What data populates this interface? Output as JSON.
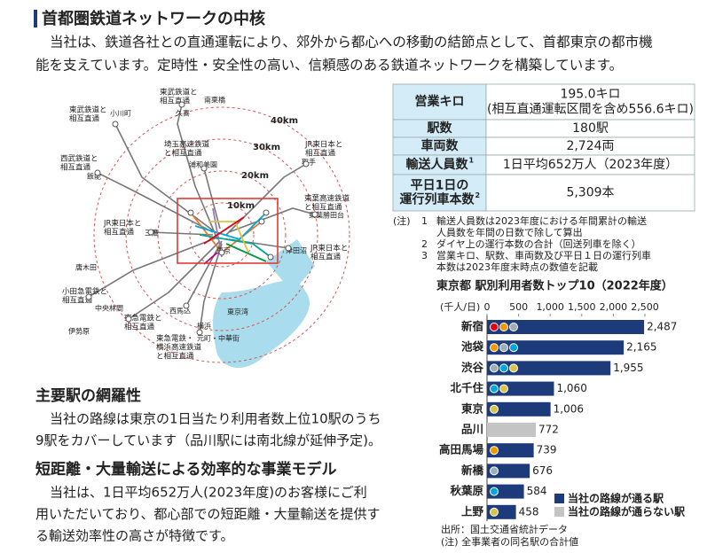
{
  "header": {
    "title": "首都圏鉄道ネットワークの中核",
    "intro": [
      "当社は、鉄道各社との直通運転により、郊外から都心への移動の結節点として、首都東京の都市機",
      "能を支えています。定時性・安全性の高い、信頼感のある鉄道ネットワークを構築しています。"
    ]
  },
  "map": {
    "rings": [
      "10km",
      "20km",
      "30km",
      "40km"
    ],
    "labels": [
      {
        "lines": [
          "東武鉄道と",
          "相互直通"
        ]
      },
      {
        "lines": [
          "南栗橋"
        ]
      },
      {
        "lines": [
          "久喜"
        ]
      },
      {
        "lines": [
          "東武鉄道と",
          "相互直通"
        ]
      },
      {
        "lines": [
          "小川町"
        ]
      },
      {
        "lines": [
          "埼玉高速鉄道",
          "と相互直通"
        ]
      },
      {
        "lines": [
          "浦和美園"
        ]
      },
      {
        "lines": [
          "JR東日本と",
          "相互直通"
        ]
      },
      {
        "lines": [
          "取手"
        ]
      },
      {
        "lines": [
          "西武鉄道と",
          "相互直通"
        ]
      },
      {
        "lines": [
          "飯能"
        ]
      },
      {
        "lines": [
          "東葉高速鉄道",
          "と相互直通"
        ]
      },
      {
        "lines": [
          "東葉勝田台"
        ]
      },
      {
        "lines": [
          "JR東日本と",
          "相互直通"
        ]
      },
      {
        "lines": [
          "三鷹"
        ]
      },
      {
        "lines": [
          "東京"
        ]
      },
      {
        "lines": [
          "JR東日本と",
          "相互直通"
        ]
      },
      {
        "lines": [
          "津田沼"
        ]
      },
      {
        "lines": [
          "唐木田"
        ]
      },
      {
        "lines": [
          "東京湾"
        ]
      },
      {
        "lines": [
          "小田急電鉄と",
          "相互直通"
        ]
      },
      {
        "lines": [
          "中央林間"
        ]
      },
      {
        "lines": [
          "伊勢原"
        ]
      },
      {
        "lines": [
          "東急電鉄と",
          "相互直通"
        ]
      },
      {
        "lines": [
          "西馬込"
        ]
      },
      {
        "lines": [
          "横浜"
        ]
      },
      {
        "lines": [
          "東急電鉄・",
          "横浜高速鉄道",
          "と相互直通"
        ]
      },
      {
        "lines": [
          "元町・中華街"
        ]
      }
    ]
  },
  "table": {
    "rows": [
      {
        "label": [
          "営業キロ"
        ],
        "value": [
          "195.0キロ",
          "(相互直通運転区間を含め556.6キロ)"
        ]
      },
      {
        "label": [
          "駅数"
        ],
        "value": [
          "180駅"
        ]
      },
      {
        "label": [
          "車両数"
        ],
        "value": [
          "2,724両"
        ]
      },
      {
        "label": [
          "輸送人員数"
        ],
        "sup": "1",
        "value": [
          "1日平均652万人（2023年度）"
        ]
      },
      {
        "label": [
          "平日1日の",
          "運行列車本数"
        ],
        "sup": "2",
        "value": [
          "5,309本"
        ]
      }
    ]
  },
  "notes": {
    "prefix": "(注)",
    "items": [
      {
        "num": "1",
        "lines": [
          "輸送人員数は2023年度における年間累計の輸送",
          "人員数を年間の日数で除して算出"
        ]
      },
      {
        "num": "2",
        "lines": [
          "ダイヤ上の運行本数の合計（回送列車を除く）"
        ]
      },
      {
        "num": "3",
        "lines": [
          "営業キロ、駅数、車両数及び平日１日の運行列車",
          "本数は2023年度末時点の数値を記載"
        ]
      }
    ]
  },
  "sections": [
    {
      "heading": "主要駅の網羅性",
      "lines": [
        "当社の路線は東京の1日当たり利用者数上位10駅のうち",
        "9駅をカバーしています（品川駅には南北線が延伸予定)。"
      ]
    },
    {
      "heading": "短距離・大量輸送による効率的な事業モデル",
      "lines": [
        "当社は、1日平均652万人(2023年度)のお客様にご利",
        "用いただいており、都心部での短距離・大量輸送を提供す",
        "る輸送効率性の高さが特徴です。"
      ]
    }
  ],
  "chart_data": {
    "type": "bar",
    "orientation": "horizontal",
    "title": "東京都 駅別利用者数トップ10（2022年度）",
    "unit": "(千人/日)",
    "categories": [
      "新宿",
      "池袋",
      "渋谷",
      "北千住",
      "東京",
      "品川",
      "高田馬場",
      "新橋",
      "秋葉原",
      "上野"
    ],
    "series": [
      {
        "name": "当社の路線が通る駅",
        "color": "#1d3a7a",
        "values": [
          2487,
          2165,
          1955,
          1060,
          1006,
          null,
          739,
          676,
          584,
          458
        ],
        "value_labels": [
          "2,487",
          "2,165",
          "1,955",
          "1,060",
          "1,006",
          null,
          "739",
          "676",
          "584",
          "458"
        ]
      },
      {
        "name": "当社の路線が通らない駅",
        "color": "#c4c4c4",
        "values": [
          null,
          null,
          null,
          null,
          null,
          772,
          null,
          null,
          null,
          null
        ],
        "value_labels": [
          null,
          null,
          null,
          null,
          null,
          "772",
          null,
          null,
          null,
          null
        ]
      }
    ],
    "xlim": [
      0,
      2500
    ],
    "xticks": [
      0,
      500,
      {
        "value": 1000,
        "label": "1,000"
      },
      {
        "value": 1500,
        "label": "1,500"
      },
      {
        "value": 2000,
        "label": "2,000"
      },
      {
        "value": 2500,
        "label": "2,500"
      }
    ],
    "source": "出所：国土交通省統計データ",
    "note": "(注) 全事業者の同名駅の合計値"
  }
}
